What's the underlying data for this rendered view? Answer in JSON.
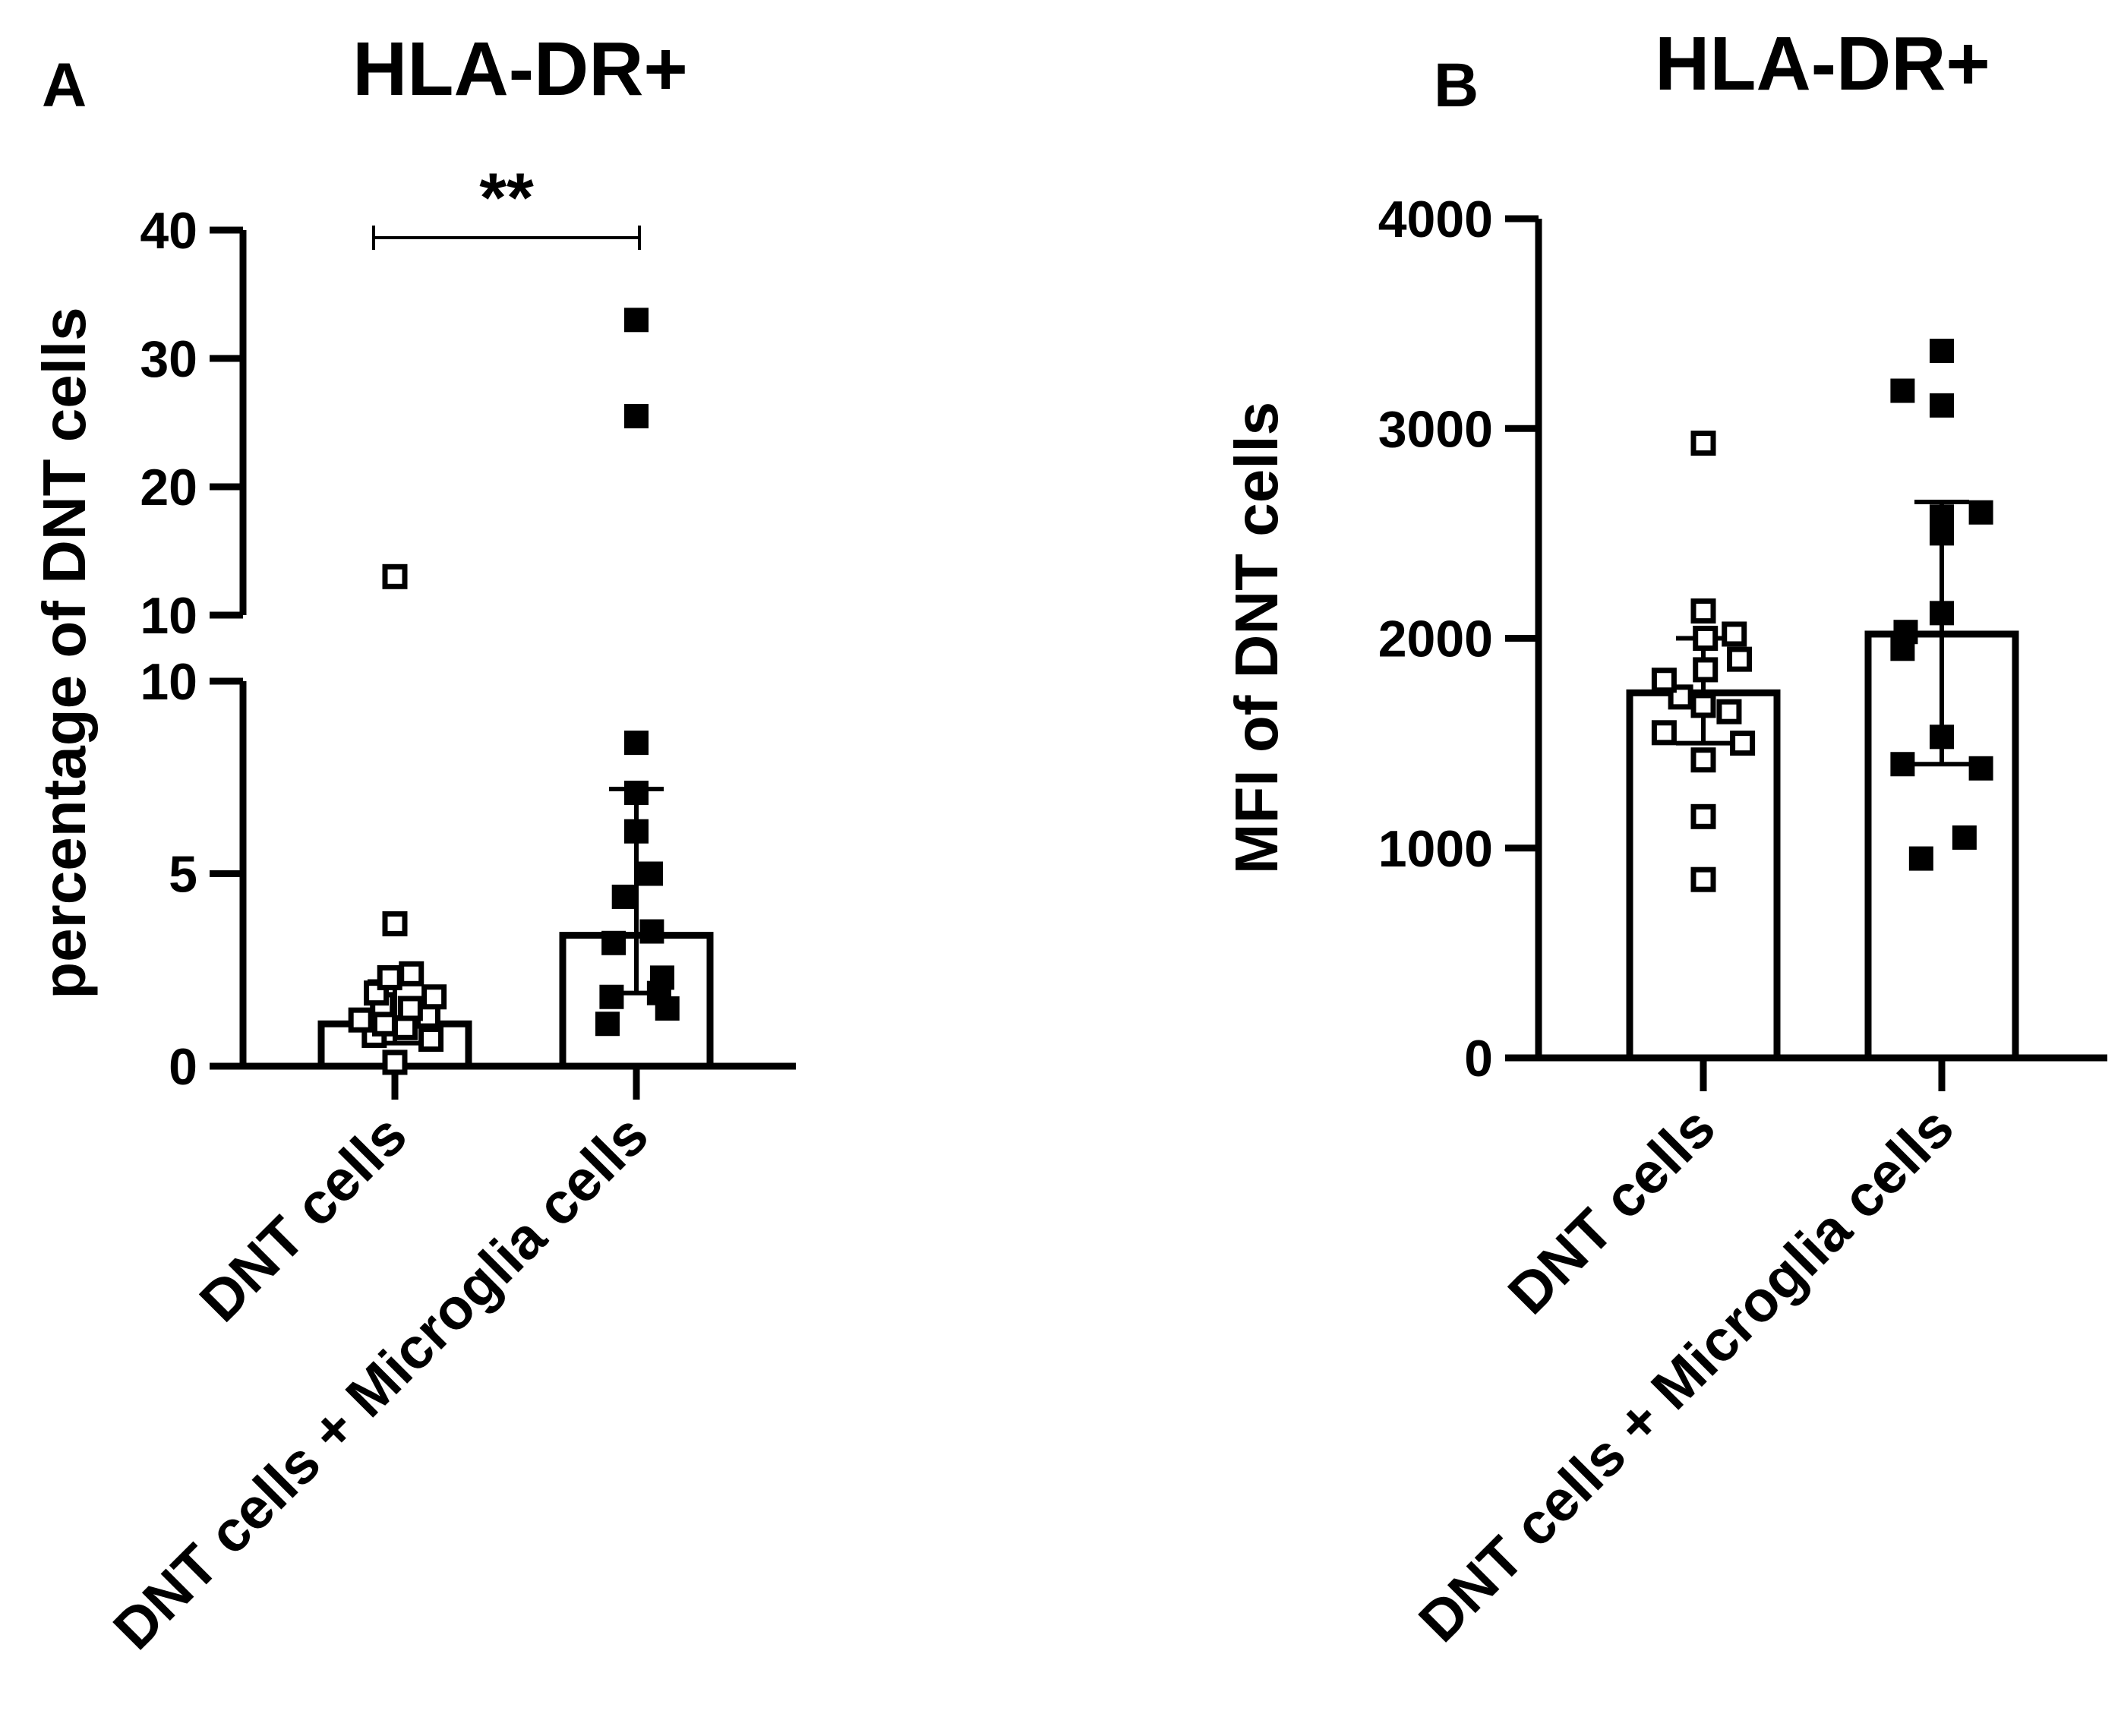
{
  "chart_data": [
    {
      "type": "bar",
      "panel": "A",
      "title": "HLA-DR+",
      "xlabel": "",
      "ylabel": "percentage of DNT cells",
      "categories": [
        "DNT cells",
        "DNT cells + Microglia cells"
      ],
      "axis_break": {
        "lower_range": [
          0,
          10
        ],
        "upper_range": [
          10,
          40
        ]
      },
      "lower_ticks": [
        "0",
        "5",
        "10"
      ],
      "upper_ticks": [
        "10",
        "20",
        "30",
        "40"
      ],
      "grid": false,
      "legend": "none",
      "series": [
        {
          "values": [
            1.1,
            3.4
          ],
          "error": [
            {
              "low": 0.6,
              "high": 2.2
            },
            {
              "low": 1.9,
              "high": 7.2
            }
          ],
          "points": [
            [
              0.1,
              0.7,
              0.8,
              1.0,
              1.1,
              1.2,
              1.3,
              1.5,
              1.6,
              1.8,
              1.9,
              2.3,
              2.4,
              3.7,
              13
            ],
            [
              1.1,
              1.5,
              1.8,
              1.9,
              2.3,
              3.2,
              3.5,
              4.4,
              5.0,
              6.1,
              7.1,
              8.4,
              25.5,
              33
            ]
          ],
          "point_offsets": [
            [
              0.0,
              0.35,
              -0.2,
              0.1,
              -0.1,
              -0.33,
              0.32,
              0.15,
              -0.12,
              0.38,
              -0.18,
              -0.05,
              0.16,
              0.0,
              0.0
            ],
            [
              -0.28,
              0.3,
              -0.24,
              0.22,
              0.25,
              -0.22,
              0.15,
              -0.12,
              0.14,
              0.0,
              0.0,
              0.0,
              0.0,
              0.0
            ]
          ]
        }
      ],
      "marker_styles": [
        "open-square",
        "filled-square"
      ],
      "significance": {
        "label": "**",
        "between": [
          0,
          1
        ]
      }
    },
    {
      "type": "bar",
      "panel": "B",
      "title": "HLA-DR+",
      "xlabel": "",
      "ylabel": "MFI of  DNT cells",
      "categories": [
        "DNT cells",
        "DNT cells + Microglia cells"
      ],
      "ylim": [
        0,
        4000
      ],
      "ticks": [
        "0",
        "1000",
        "2000",
        "3000",
        "4000"
      ],
      "grid": false,
      "legend": "none",
      "series": [
        {
          "values": [
            1740,
            2020
          ],
          "error": [
            {
              "low": 1500,
              "high": 2000
            },
            {
              "low": 1400,
              "high": 2650
            }
          ],
          "points": [
            [
              850,
              1150,
              1420,
              1500,
              1550,
              1650,
              1680,
              1720,
              1800,
              1850,
              1900,
              2000,
              2020,
              2130,
              2930
            ],
            [
              950,
              1050,
              1380,
              1400,
              1530,
              1950,
              2030,
              2120,
              2500,
              2580,
              2600,
              3110,
              3180,
              3370
            ]
          ],
          "point_offsets": [
            [
              0.0,
              0.0,
              0.0,
              0.38,
              -0.38,
              0.25,
              0.0,
              -0.22,
              -0.38,
              0.02,
              0.35,
              0.02,
              0.3,
              0.0,
              0.0
            ],
            [
              -0.2,
              0.22,
              0.38,
              -0.38,
              0.0,
              -0.38,
              -0.35,
              0.0,
              0.0,
              0.0,
              0.38,
              0.0,
              -0.38,
              0.0
            ]
          ]
        }
      ],
      "marker_styles": [
        "open-square",
        "filled-square"
      ]
    }
  ]
}
